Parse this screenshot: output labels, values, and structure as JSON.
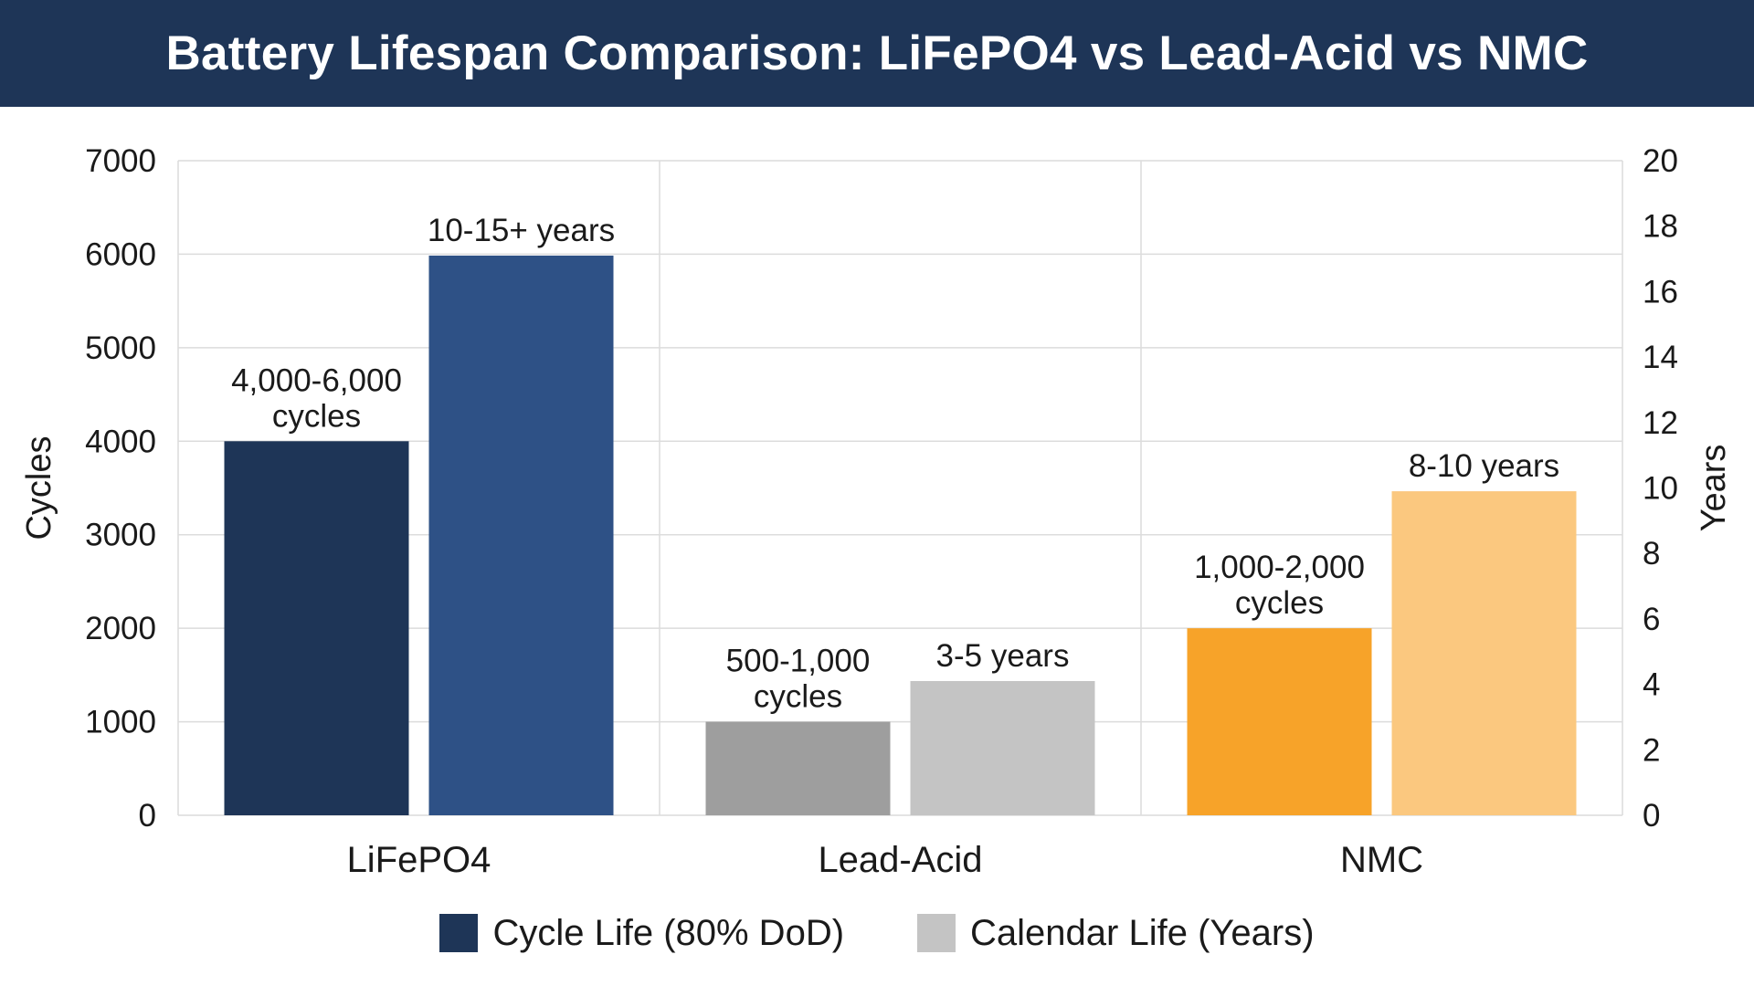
{
  "title": "Battery Lifespan Comparison: LiFePO4 vs Lead-Acid vs NMC",
  "chart_data": {
    "type": "bar",
    "title": "Battery Lifespan Comparison: LiFePO4 vs Lead-Acid vs NMC",
    "categories": [
      "LiFePO4",
      "Lead-Acid",
      "NMC"
    ],
    "ylabel_left": "Cycles",
    "ylabel_right": "Years",
    "ylim_left": [
      0,
      7000
    ],
    "yticks_left": [
      0,
      1000,
      2000,
      3000,
      4000,
      5000,
      6000,
      7000
    ],
    "ylim_right": [
      0,
      20
    ],
    "yticks_right": [
      0,
      2,
      4,
      6,
      8,
      10,
      12,
      14,
      16,
      18,
      20
    ],
    "grid": true,
    "legend_position": "bottom",
    "series": [
      {
        "name": "Cycle Life (80% DoD)",
        "axis": "left",
        "values": [
          4000,
          1000,
          2000
        ],
        "labels": [
          [
            "4,000-6,000",
            "cycles"
          ],
          [
            "500-1,000",
            "cycles"
          ],
          [
            "1,000-2,000",
            "cycles"
          ]
        ],
        "colors": [
          "#1e3557",
          "#9e9e9e",
          "#f7a329"
        ]
      },
      {
        "name": "Calendar Life (Years)",
        "axis": "right",
        "values": [
          17.1,
          4.1,
          9.9
        ],
        "labels": [
          [
            "10-15+ years"
          ],
          [
            "3-5 years"
          ],
          [
            "8-10 years"
          ]
        ],
        "colors": [
          "#2e5186",
          "#c4c4c4",
          "#fbc87f"
        ]
      }
    ],
    "legend": [
      {
        "label": "Cycle Life (80% DoD)",
        "color": "#1e3557"
      },
      {
        "label": "Calendar Life (Years)",
        "color": "#c4c4c4"
      }
    ]
  }
}
